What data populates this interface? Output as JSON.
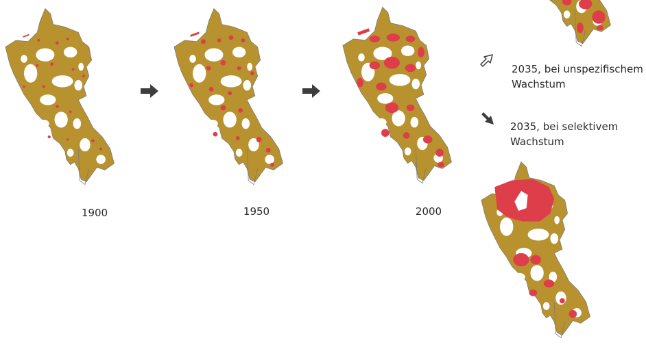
{
  "colors": {
    "settlement": "#b8922e",
    "built": "#de3d4a",
    "outline": "#7a7a7a",
    "arrow": "#3d3d3d"
  },
  "years": [
    "1900",
    "1950",
    "2000"
  ],
  "scenarios": {
    "unspecific": {
      "line1": "2035, bei unspezifischem",
      "line2": "Wachstum",
      "icon": "arrow-up-right-outline-icon"
    },
    "selective": {
      "line1": "2035, bei selektivem",
      "line2": "Wachstum",
      "icon": "arrow-down-right-filled-icon"
    }
  },
  "maps": [
    {
      "name": "map-1900",
      "built_share": 0.08
    },
    {
      "name": "map-1950",
      "built_share": 0.15
    },
    {
      "name": "map-2000",
      "built_share": 0.35
    },
    {
      "name": "map-2035-unspecific",
      "built_share": 0.5
    },
    {
      "name": "map-2035-selective",
      "built_share": 0.35
    }
  ]
}
